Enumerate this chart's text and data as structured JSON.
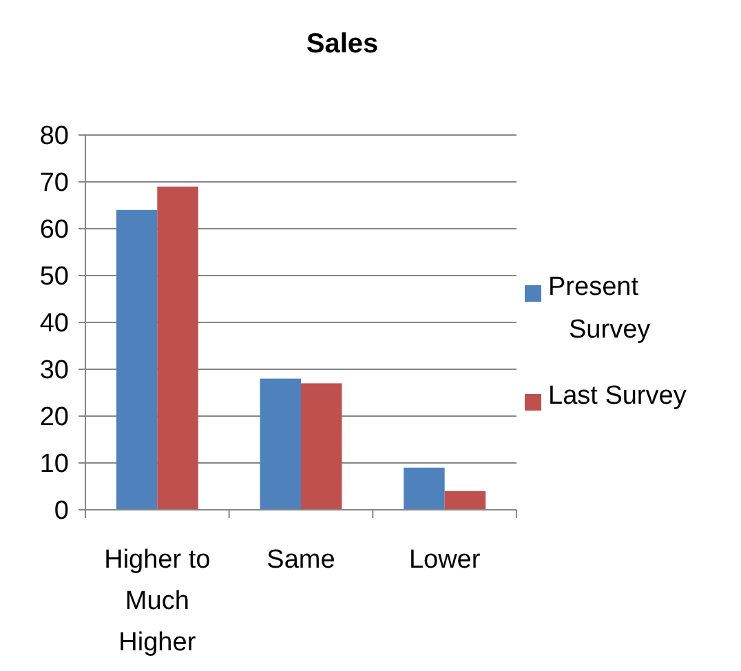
{
  "chart_data": {
    "type": "bar",
    "title": "Sales",
    "categories": [
      "Higher to Much Higher",
      "Same",
      "Lower"
    ],
    "series": [
      {
        "name": "Present Survey",
        "color": "#4f81bd",
        "values": [
          64,
          28,
          9
        ]
      },
      {
        "name": "Last Survey",
        "color": "#c0504d",
        "values": [
          69,
          27,
          4
        ]
      }
    ],
    "ylim": [
      0,
      80
    ],
    "yticks": [
      0,
      10,
      20,
      30,
      40,
      50,
      60,
      70,
      80
    ],
    "grid": "y",
    "legend": "right"
  }
}
